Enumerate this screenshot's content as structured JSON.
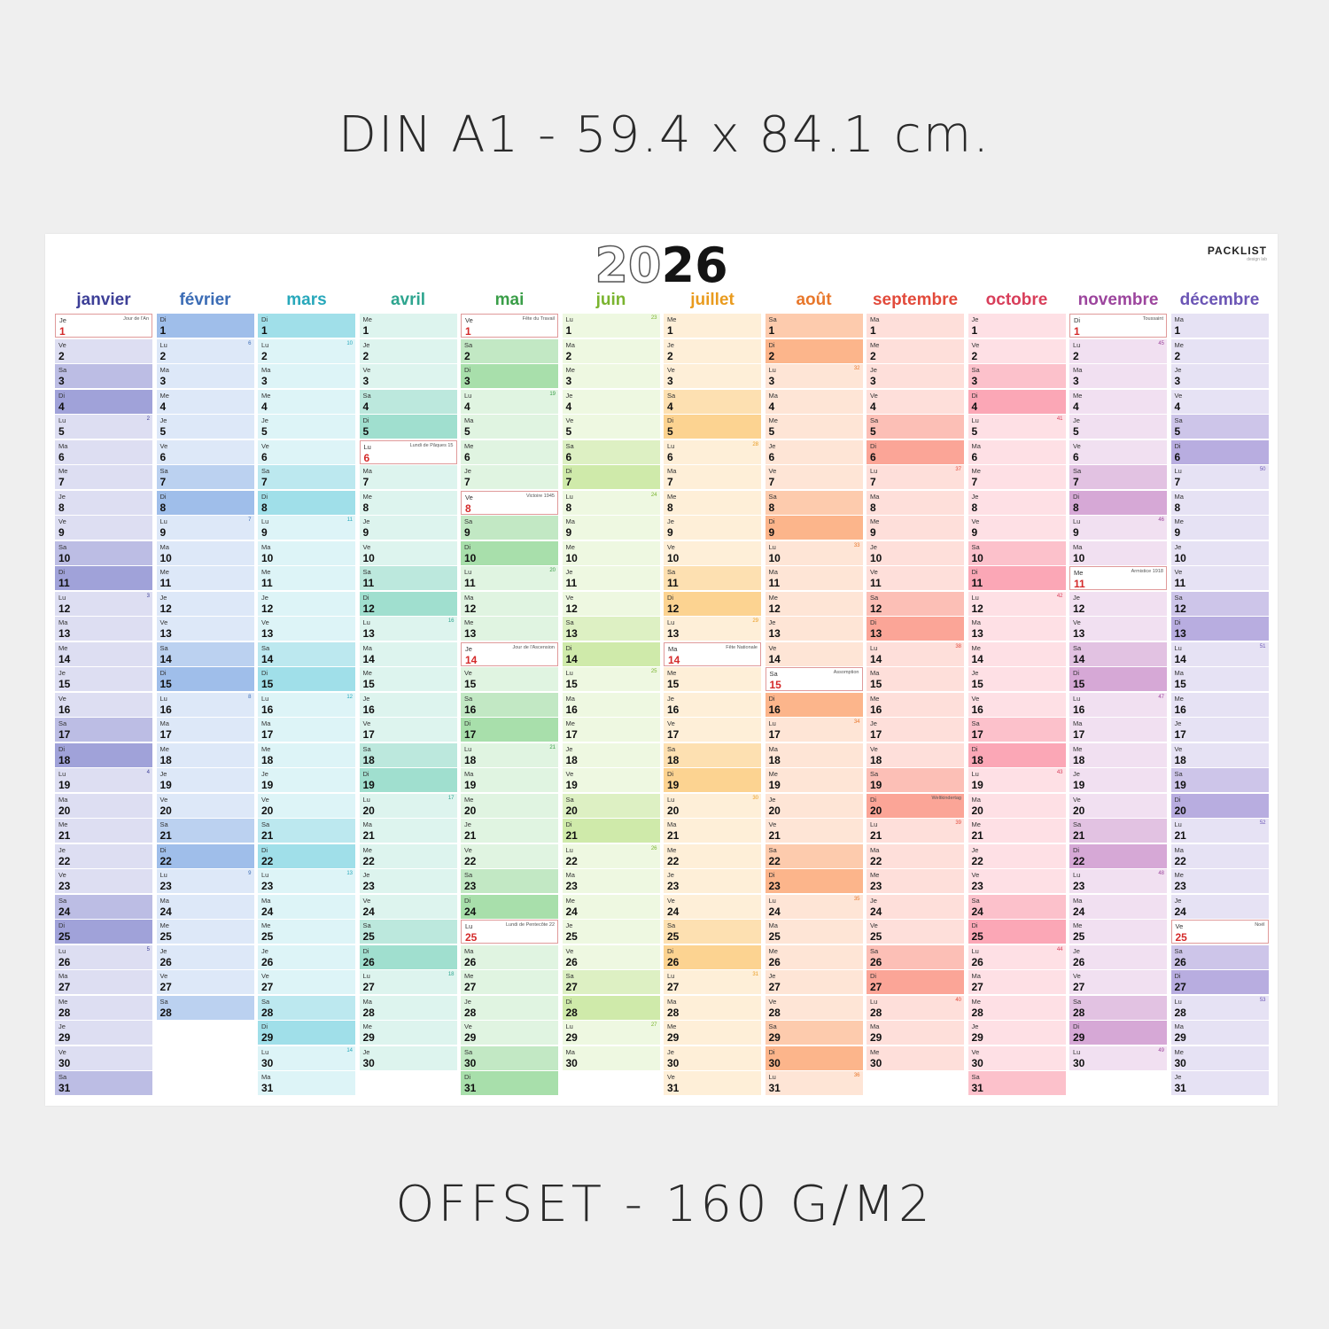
{
  "captions": {
    "top": "DIN A1 - 59.4 x 84.1 cm.",
    "bottom": "OFFSET - 160 G/M2"
  },
  "calendar": {
    "year_light": "20",
    "year_dark": "26",
    "brand": "PACKLIST",
    "brand_tagline": "design lab",
    "months": [
      {
        "name": "janvier",
        "days": 31,
        "start": 3,
        "color": "#8f91d2",
        "text": "#3d3f97",
        "holidays": {
          "1": "Jour de l'An"
        }
      },
      {
        "name": "février",
        "days": 28,
        "start": 6,
        "color": "#8eb2e6",
        "text": "#3b6cb5",
        "holidays": {}
      },
      {
        "name": "mars",
        "days": 31,
        "start": 6,
        "color": "#8fd9e5",
        "text": "#28a8bb",
        "holidays": {}
      },
      {
        "name": "avril",
        "days": 30,
        "start": 2,
        "color": "#8fd9c7",
        "text": "#2ea58f",
        "holidays": {
          "6": "Lundi de Pâques 15"
        }
      },
      {
        "name": "mai",
        "days": 31,
        "start": 4,
        "color": "#99d99c",
        "text": "#3a9e48",
        "holidays": {
          "1": "Fête du Travail",
          "8": "Victoire 1945",
          "14": "Jour de l'Ascension",
          "25": "Lundi de Pentecôte 22"
        }
      },
      {
        "name": "juin",
        "days": 30,
        "start": 0,
        "color": "#c6e69b",
        "text": "#7ab42f",
        "holidays": {}
      },
      {
        "name": "juillet",
        "days": 31,
        "start": 2,
        "color": "#fccb7d",
        "text": "#e99b1e",
        "holidays": {
          "14": "Fête Nationale"
        }
      },
      {
        "name": "août",
        "days": 31,
        "start": 5,
        "color": "#fba877",
        "text": "#e8772b",
        "holidays": {
          "15": "Assomption"
        }
      },
      {
        "name": "septembre",
        "days": 30,
        "start": 1,
        "color": "#fa9585",
        "text": "#e24a3b",
        "holidays": {}
      },
      {
        "name": "octobre",
        "days": 31,
        "start": 3,
        "color": "#fa97a9",
        "text": "#d83e5a",
        "holidays": {}
      },
      {
        "name": "novembre",
        "days": 30,
        "start": 6,
        "color": "#cf99cf",
        "text": "#9c459d",
        "holidays": {
          "1": "Toussaint",
          "11": "Armistice 1918"
        }
      },
      {
        "name": "décembre",
        "days": 31,
        "start": 1,
        "color": "#ab9fdb",
        "text": "#6b55b5",
        "holidays": {
          "25": "Noël"
        }
      }
    ],
    "special_notes": {
      "8": {
        "20": "Weltkindertag"
      }
    },
    "weekdays": [
      "Lu",
      "Ma",
      "Me",
      "Je",
      "Ve",
      "Sa",
      "Di"
    ]
  }
}
